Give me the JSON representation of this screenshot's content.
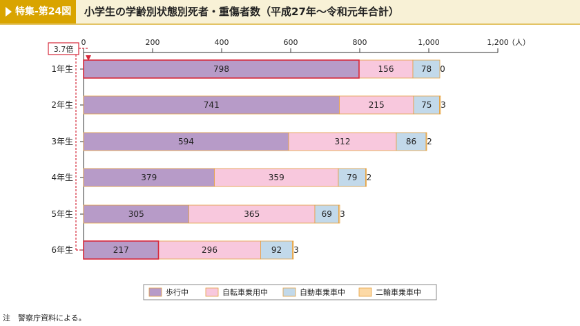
{
  "header": {
    "badge": "特集-第24図",
    "title": "小学生の学齢別状態別死者・重傷者数（平成27年～令和元年合計）"
  },
  "note": "注　警察庁資料による。",
  "callout": "3.7倍",
  "colors": {
    "walking": "#b79bc8",
    "bicycle": "#f8c8dd",
    "car": "#c2d9ea",
    "motorcycle": "#fcd9a6",
    "highlight": "#d6283a",
    "bar_border": "#e3a040"
  },
  "chart_data": {
    "type": "bar",
    "orientation": "horizontal",
    "stacked": true,
    "categories": [
      "1年生",
      "2年生",
      "3年生",
      "4年生",
      "5年生",
      "6年生"
    ],
    "series": [
      {
        "name": "歩行中",
        "values": [
          798,
          741,
          594,
          379,
          305,
          217
        ]
      },
      {
        "name": "自転車乗用中",
        "values": [
          156,
          215,
          312,
          359,
          365,
          296
        ]
      },
      {
        "name": "自動車乗車中",
        "values": [
          78,
          75,
          86,
          79,
          69,
          92
        ]
      },
      {
        "name": "二輪車乗車中",
        "values": [
          0,
          3,
          2,
          2,
          3,
          3
        ]
      }
    ],
    "xlim": [
      0,
      1200
    ],
    "xticks": [
      "0",
      "200",
      "400",
      "600",
      "800",
      "1,000",
      "1,200"
    ],
    "unit": "（人）",
    "legend_position": "bottom",
    "grid": false
  }
}
